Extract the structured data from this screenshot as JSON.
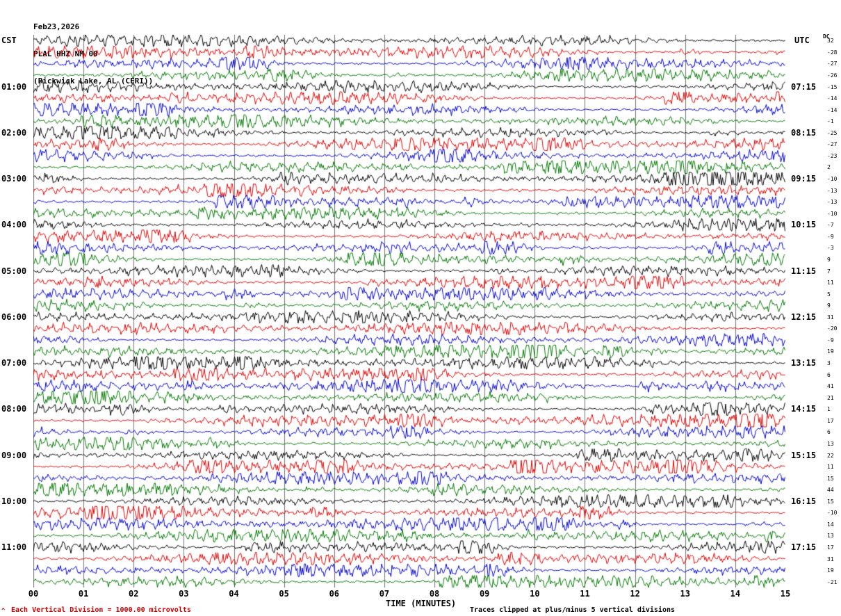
{
  "header": {
    "date": "Feb23,2026",
    "station": "PLAL HHZ NM 00",
    "location": "(Pickwick Lake, AL (CERI))"
  },
  "axes": {
    "left_timezone": "CST",
    "right_timezone": "UTC",
    "dc_header": "DC",
    "x_title": "TIME (MINUTES)",
    "minute_labels": [
      "00",
      "01",
      "02",
      "03",
      "04",
      "05",
      "06",
      "07",
      "08",
      "09",
      "10",
      "11",
      "12",
      "13",
      "14",
      "15"
    ],
    "left_hour_labels": [
      "01:00",
      "02:00",
      "03:00",
      "04:00",
      "05:00",
      "06:00",
      "07:00",
      "08:00",
      "09:00",
      "10:00",
      "11:00"
    ],
    "right_hour_labels": [
      "07:15",
      "08:15",
      "09:15",
      "10:15",
      "11:15",
      "12:15",
      "13:15",
      "14:15",
      "15:15",
      "16:15",
      "17:15"
    ],
    "dc_values": [
      32,
      -28,
      -27,
      -26,
      -15,
      -14,
      -14,
      -1,
      -25,
      -27,
      -23,
      2,
      -10,
      -13,
      -13,
      -10,
      -7,
      -9,
      -3,
      9,
      7,
      11,
      5,
      9,
      31,
      -20,
      -9,
      19,
      3,
      6,
      41,
      21,
      1,
      17,
      6,
      13,
      22,
      11,
      15,
      44,
      15,
      -10,
      14,
      13,
      17,
      31,
      19,
      -21
    ]
  },
  "footer": {
    "corner_mark": "^",
    "left_note": "Each Vertical Division = 1000.00 microvolts",
    "right_note": "Traces clipped at plus/minus 5 vertical divisions"
  },
  "chart_data": {
    "type": "line",
    "subtype": "helicorder-seismogram",
    "title": "PLAL HHZ NM 00 (Pickwick Lake, AL (CERI)) Feb23,2026",
    "xlabel": "TIME (MINUTES)",
    "x_range_minutes": [
      0,
      15
    ],
    "rows": 48,
    "minutes_per_row": 15,
    "row_interval_labels_left_cst": [
      "01:00",
      "02:00",
      "03:00",
      "04:00",
      "05:00",
      "06:00",
      "07:00",
      "08:00",
      "09:00",
      "10:00",
      "11:00"
    ],
    "row_interval_labels_right_utc": [
      "07:15",
      "08:15",
      "09:15",
      "10:15",
      "11:15",
      "12:15",
      "13:15",
      "14:15",
      "15:15",
      "16:15",
      "17:15"
    ],
    "traces_per_hour": 4,
    "trace_color_cycle": [
      "#000000",
      "#dd0000",
      "#0000cc",
      "#007700"
    ],
    "grid": true,
    "grid_vertical_every_minutes": 1,
    "microvolts_per_division": 1000,
    "clip_divisions": 5,
    "waveform": "continuous ambient seismic noise with intermittent higher-amplitude bursts (values not individually labeled)"
  }
}
